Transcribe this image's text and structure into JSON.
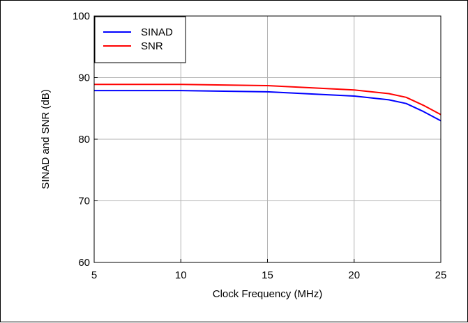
{
  "chart_data": {
    "type": "line",
    "title": "",
    "xlabel": "Clock Frequency (MHz)",
    "ylabel": "SINAD and SNR (dB)",
    "xlim": [
      5,
      25
    ],
    "ylim": [
      60,
      100
    ],
    "xticks": [
      5,
      10,
      15,
      20,
      25
    ],
    "yticks": [
      60,
      70,
      80,
      90,
      100
    ],
    "grid": true,
    "legend_position": "top-left",
    "series": [
      {
        "name": "SINAD",
        "color": "#0000ff",
        "x": [
          5,
          10,
          15,
          20,
          22,
          23,
          24,
          25
        ],
        "y": [
          87.9,
          87.9,
          87.7,
          87.0,
          86.4,
          85.8,
          84.5,
          83.0
        ]
      },
      {
        "name": "SNR",
        "color": "#ff0000",
        "x": [
          5,
          10,
          15,
          20,
          22,
          23,
          24,
          25
        ],
        "y": [
          88.9,
          88.9,
          88.7,
          88.0,
          87.4,
          86.8,
          85.5,
          84.0
        ]
      }
    ]
  }
}
